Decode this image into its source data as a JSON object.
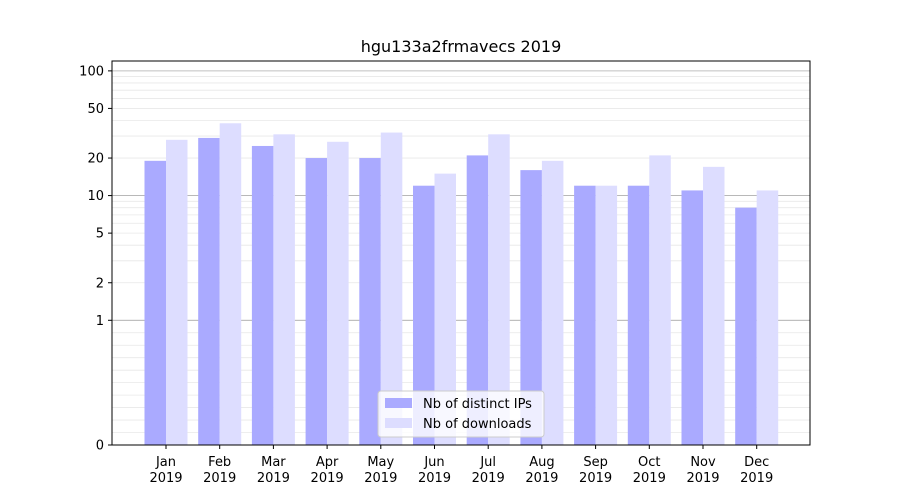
{
  "chart_data": {
    "type": "bar",
    "title": "hgu133a2frmavecs 2019",
    "xlabel": "",
    "ylabel": "",
    "y_scale": "log",
    "ylim": [
      0,
      120
    ],
    "y_ticks": [
      0,
      1,
      2,
      5,
      10,
      20,
      50,
      100
    ],
    "categories": [
      "Jan\n2019",
      "Feb\n2019",
      "Mar\n2019",
      "Apr\n2019",
      "May\n2019",
      "Jun\n2019",
      "Jul\n2019",
      "Aug\n2019",
      "Sep\n2019",
      "Oct\n2019",
      "Nov\n2019",
      "Dec\n2019"
    ],
    "series": [
      {
        "name": "Nb of distinct IPs",
        "color": "#aaaaff",
        "values": [
          19,
          29,
          25,
          20,
          20,
          12,
          21,
          16,
          12,
          12,
          11,
          8
        ]
      },
      {
        "name": "Nb of downloads",
        "color": "#ddddff",
        "values": [
          28,
          38,
          31,
          27,
          32,
          15,
          31,
          19,
          12,
          21,
          17,
          11
        ]
      }
    ],
    "legend_position": "bottom-center",
    "grid": true
  }
}
